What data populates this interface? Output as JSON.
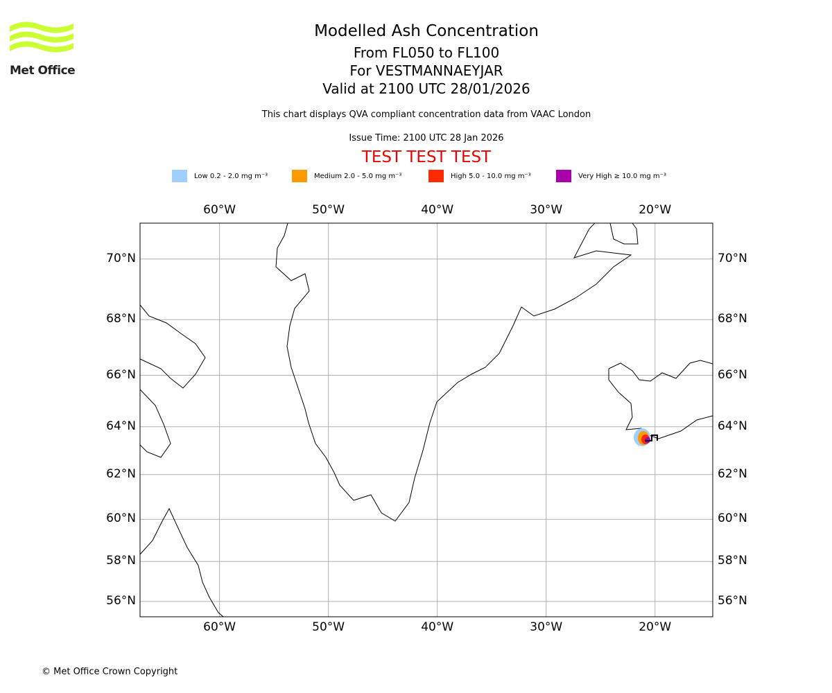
{
  "header": {
    "title": "Modelled Ash Concentration",
    "levels": "From FL050 to FL100",
    "volcano": "For VESTMANNAEYJAR",
    "valid": "Valid at 2100 UTC 28/01/2026",
    "description": "This chart displays QVA compliant concentration data from VAAC London",
    "issue": "Issue Time: 2100 UTC 28 Jan 2026",
    "test": "TEST TEST TEST"
  },
  "logo": {
    "text": "Met Office",
    "color": "#ccff33"
  },
  "legend": [
    {
      "label": "Low 0.2 - 2.0 mg m⁻³",
      "color": "#a0d0ff"
    },
    {
      "label": "Medium 2.0 - 5.0 mg m⁻³",
      "color": "#ff9900"
    },
    {
      "label": "High 5.0 - 10.0 mg m⁻³",
      "color": "#ff2a00"
    },
    {
      "label": "Very High ≥ 10.0 mg m⁻³",
      "color": "#aa00aa"
    }
  ],
  "map": {
    "lon_labels": [
      "60°W",
      "50°W",
      "40°W",
      "30°W",
      "20°W"
    ],
    "lat_labels": [
      "70°N",
      "68°N",
      "66°N",
      "64°N",
      "62°N",
      "60°N",
      "58°N",
      "56°N"
    ],
    "lons": [
      -60,
      -50,
      -40,
      -30,
      -20
    ],
    "lats": [
      70,
      68,
      66,
      64,
      62,
      60,
      58,
      56
    ],
    "extent": {
      "lon": [
        -67.3,
        -14.7
      ],
      "lat": [
        55.2,
        71.1
      ]
    }
  },
  "footer": {
    "copyright": "© Met Office Crown Copyright"
  }
}
